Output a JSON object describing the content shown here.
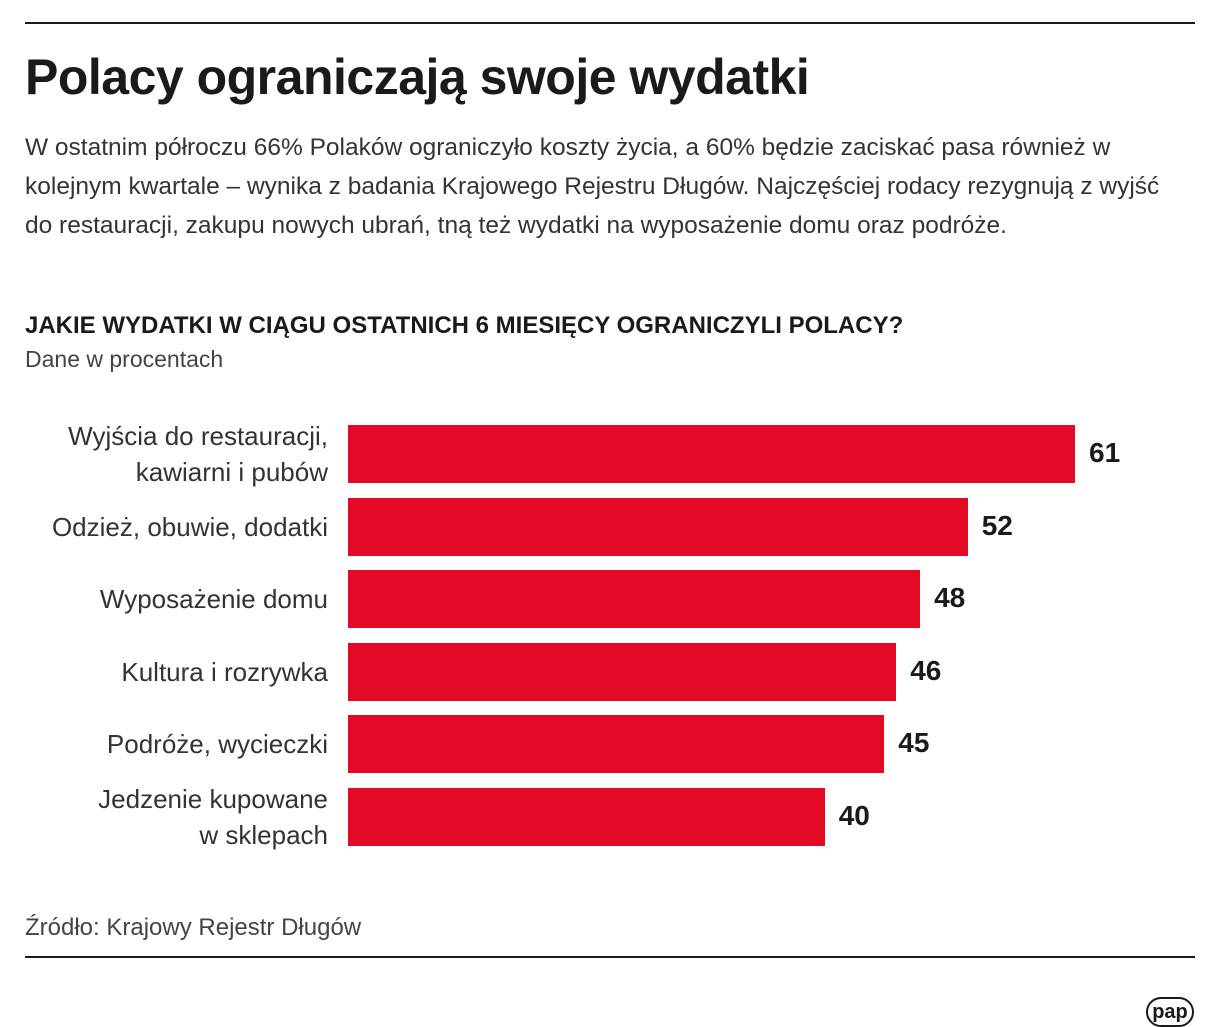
{
  "chart_data": {
    "type": "bar",
    "orientation": "horizontal",
    "title": "Polacy ograniczają swoje wydatki",
    "subtitle": "W ostatnim półroczu 66% Polaków ograniczyło koszty życia, a 60% będzie zaciskać pasa również w kolejnym kwartale – wynika z badania Krajowego Rejestru Długów. Najczęściej rodacy rezygnują z wyjść do restauracji, zakupu nowych ubrań, tną też wydatki na wyposażenie domu oraz podróże.",
    "chart_title": "JAKIE WYDATKI W CIĄGU OSTATNICH 6 MIESIĘCY OGRANICZYLI POLACY?",
    "unit_note": "Dane w procentach",
    "categories": [
      "Wyjścia do restauracji,\nkawiarni i pubów",
      "Odzież, obuwie, dodatki",
      "Wyposażenie domu",
      "Kultura i rozrywka",
      "Podróże, wycieczki",
      "Jedzenie kupowane\nw sklepach"
    ],
    "values": [
      61,
      52,
      48,
      46,
      45,
      40
    ],
    "color": "#e30a25",
    "source": "Źródło: Krajowy Rejestr Długów",
    "logo": "pap"
  }
}
